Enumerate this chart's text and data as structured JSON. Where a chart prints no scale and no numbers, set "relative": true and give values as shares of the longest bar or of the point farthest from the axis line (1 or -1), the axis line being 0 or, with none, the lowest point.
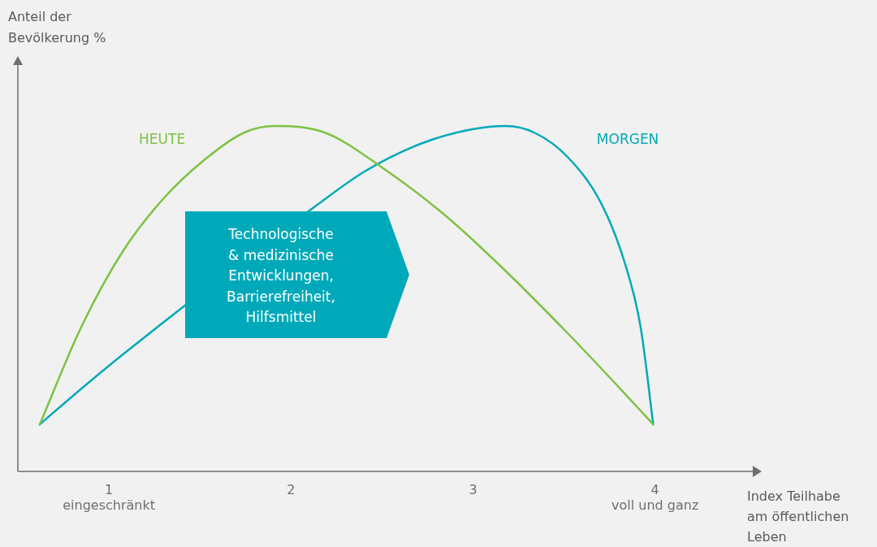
{
  "chart_data": {
    "type": "line",
    "relative": true,
    "xlabel": "Index Teilhabe am öffentlichen Leben",
    "xlim": [
      0.5,
      4.55
    ],
    "xticks": [
      {
        "value": 1,
        "label": "1\neingeschränkt"
      },
      {
        "value": 2,
        "label": "2"
      },
      {
        "value": 3,
        "label": "3"
      },
      {
        "value": 4,
        "label": "4\nvoll und ganz"
      }
    ],
    "marker": "none",
    "line_style": "solid",
    "annotations": [
      "Technologische\n& medizinische\nEntwicklungen,\nBarrierefreiheit,\nHilfsmittel",
      "Anteil der Bevölkerung %"
    ],
    "series": [
      {
        "name": "HEUTE",
        "color": "#7dc242",
        "x": [
          0.62,
          0.85,
          1.08,
          1.3,
          1.52,
          1.74,
          1.91,
          2.19,
          2.5,
          2.85,
          3.16,
          3.52,
          3.79,
          3.99
        ],
        "values": [
          0.136,
          0.42,
          0.64,
          0.79,
          0.9,
          0.98,
          1,
          0.98,
          0.88,
          0.74,
          0.59,
          0.4,
          0.25,
          0.136
        ]
      },
      {
        "name": "MORGEN",
        "color": "#00a9b9",
        "x": [
          0.62,
          0.85,
          1.08,
          2.14,
          2.41,
          2.72,
          2.99,
          3.18,
          3.34,
          3.52,
          3.7,
          3.83,
          3.92,
          3.99
        ],
        "values": [
          0.136,
          0.24,
          0.34,
          0.77,
          0.87,
          0.95,
          0.99,
          1,
          0.98,
          0.91,
          0.78,
          0.61,
          0.42,
          0.136
        ]
      }
    ]
  }
}
